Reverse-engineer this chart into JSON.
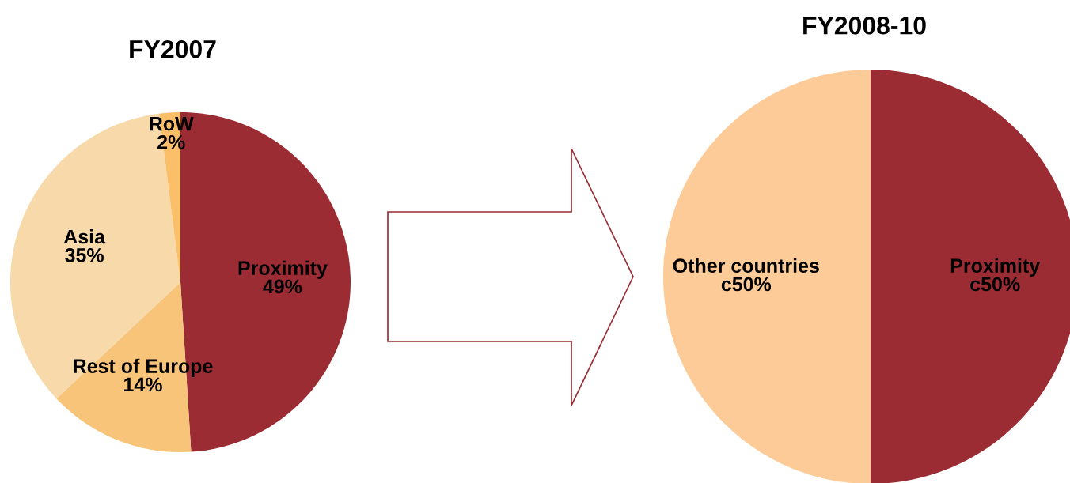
{
  "chart_data": [
    {
      "type": "pie",
      "title": "FY2007",
      "categories": [
        "Proximity",
        "Rest of Europe",
        "Asia",
        "RoW"
      ],
      "values": [
        49,
        14,
        35,
        2
      ],
      "colors": [
        "#9b2c33",
        "#f7c47a",
        "#f7d9aa",
        "#fbbf6a"
      ],
      "value_labels": [
        "49%",
        "14%",
        "35%",
        "2%"
      ]
    },
    {
      "type": "pie",
      "title": "FY2008-10",
      "categories": [
        "Proximity",
        "Other countries"
      ],
      "values": [
        50,
        50
      ],
      "colors": [
        "#9b2c33",
        "#fdcb97"
      ],
      "value_labels": [
        "c50%",
        "c50%"
      ]
    }
  ]
}
